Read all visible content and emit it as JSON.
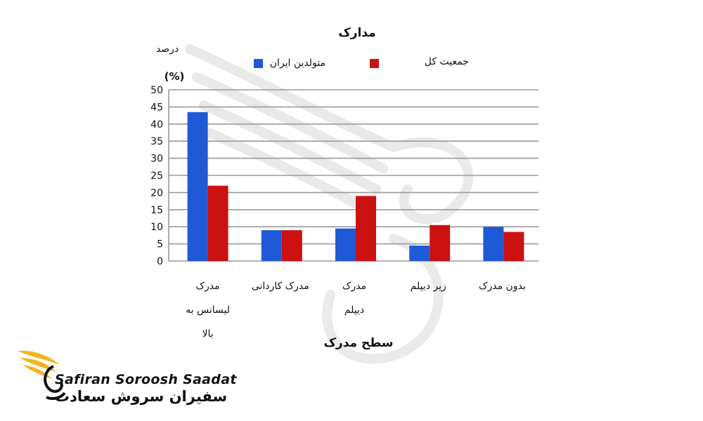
{
  "chart_data": {
    "type": "bar",
    "title": "مدارک",
    "xlabel": "سطح مدرک",
    "ylabel": "درصد",
    "ylabel_unit": "(%)",
    "ylim": [
      0,
      50
    ],
    "yticks": [
      0,
      5,
      10,
      15,
      20,
      25,
      30,
      35,
      40,
      45,
      50
    ],
    "grid": true,
    "legend_position": "top",
    "categories": [
      [
        "مدرک",
        "لیسانس به",
        "بالا"
      ],
      [
        "مدرک کاردانی"
      ],
      [
        "مدرک",
        "دیپلم"
      ],
      [
        "زیر دیپلم"
      ],
      [
        "بدون مدرک"
      ]
    ],
    "series": [
      {
        "name": "متولدین ایران",
        "color": "#1f5ad6",
        "values": [
          43.5,
          9,
          9.5,
          4.5,
          10
        ]
      },
      {
        "name": "جمعیت کل",
        "color": "#cc1111",
        "values": [
          22,
          9,
          19,
          10.5,
          8.5
        ]
      }
    ]
  },
  "logo": {
    "brand_en": "Safiran Soroosh Saadat",
    "brand_fa": "سفیران سروش سعادت",
    "gold": "#f2b51f"
  }
}
